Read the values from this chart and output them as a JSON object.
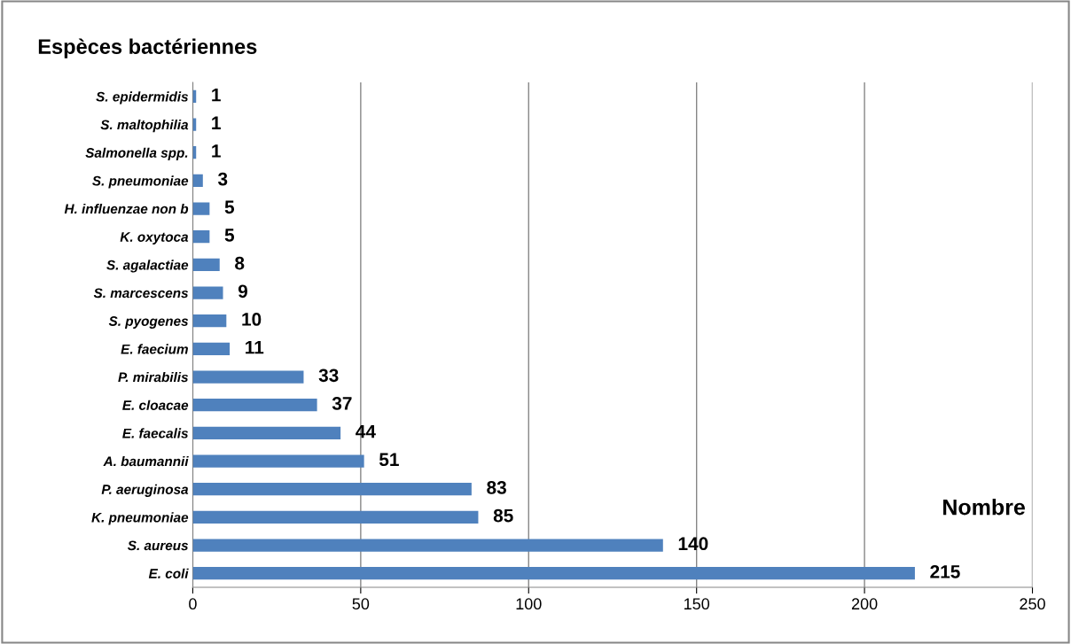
{
  "chart_data": {
    "type": "bar",
    "orientation": "horizontal",
    "title": "Espèces bactériennes",
    "xlabel": "Nombre",
    "categories": [
      "S. epidermidis",
      "S. maltophilia",
      "Salmonella spp.",
      "S. pneumoniae",
      "H. influenzae non b",
      "K. oxytoca",
      "S. agalactiae",
      "S. marcescens",
      "S. pyogenes",
      "E. faecium",
      "P. mirabilis",
      "E. cloacae",
      "E. faecalis",
      "A. baumannii",
      "P. aeruginosa",
      "K. pneumoniae",
      "S. aureus",
      "E. coli"
    ],
    "values": [
      1,
      1,
      1,
      3,
      5,
      5,
      8,
      9,
      10,
      11,
      33,
      37,
      44,
      51,
      83,
      85,
      140,
      215
    ],
    "color": "#4f81bd",
    "xlim": [
      0,
      250
    ],
    "xticks": [
      0,
      50,
      100,
      150,
      200,
      250
    ],
    "grid": "x",
    "data_labels": true,
    "legend": false
  }
}
